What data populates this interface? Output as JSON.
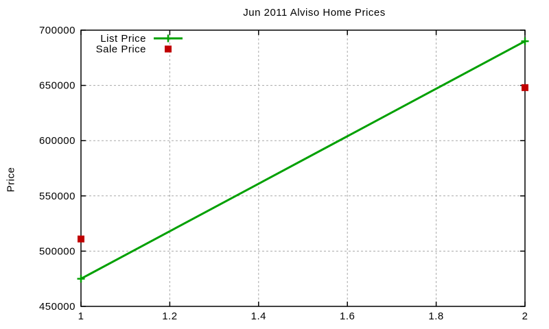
{
  "chart_data": {
    "type": "line",
    "title": "Jun 2011 Alviso Home Prices",
    "xlabel": "",
    "ylabel": "Price",
    "xlim": [
      1,
      2
    ],
    "ylim": [
      450000,
      700000
    ],
    "x": [
      1,
      2
    ],
    "xticks": [
      1,
      1.2,
      1.4,
      1.6,
      1.8,
      2
    ],
    "xtick_labels": [
      "1",
      "1.2",
      "1.4",
      "1.6",
      "1.8",
      "2"
    ],
    "yticks": [
      450000,
      500000,
      550000,
      600000,
      650000,
      700000
    ],
    "ytick_labels": [
      "450000",
      "500000",
      "550000",
      "600000",
      "650000",
      "700000"
    ],
    "grid": true,
    "legend_position": "top-left-inside",
    "background_color": "#ffffff",
    "axis_color": "#000000",
    "grid_color": "#a8a8a8",
    "series": [
      {
        "name": "List Price",
        "style": "line-with-plus-markers",
        "color": "#00a000",
        "values": [
          475000,
          690000
        ]
      },
      {
        "name": "Sale Price",
        "style": "square-points",
        "color": "#c00000",
        "values": [
          511000,
          648000
        ]
      }
    ]
  }
}
